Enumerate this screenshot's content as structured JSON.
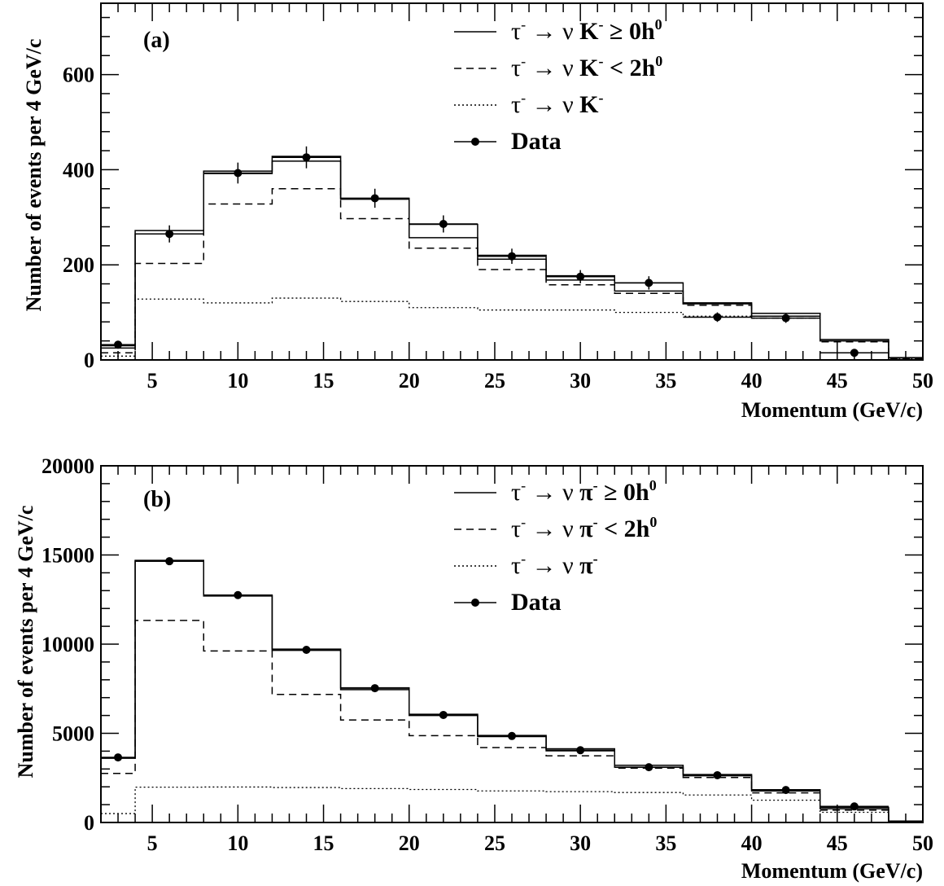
{
  "chart_data": [
    {
      "type": "line",
      "panel_label": "(a)",
      "xlabel": "Momentum (GeV/c)",
      "ylabel": "Number of events per 4 GeV/c",
      "xlim": [
        2,
        50
      ],
      "ylim": [
        0,
        750
      ],
      "x_ticks": [
        5,
        10,
        15,
        20,
        25,
        30,
        35,
        40,
        45,
        50
      ],
      "y_ticks": [
        0,
        200,
        400,
        600
      ],
      "y_tick_labels": [
        "0",
        "200",
        "400",
        "600"
      ],
      "bin_edges": [
        2,
        4,
        8,
        12,
        16,
        20,
        24,
        28,
        32,
        36,
        40,
        44,
        48,
        50
      ],
      "legend_placement": "top-right",
      "series": [
        {
          "kind": "mc_upper",
          "style": "solid",
          "values": [
            30,
            272,
            397,
            428,
            340,
            285,
            220,
            177,
            162,
            120,
            98,
            43,
            5
          ]
        },
        {
          "kind": "mc_lower",
          "style": "solid",
          "values": [
            25,
            265,
            392,
            418,
            338,
            257,
            212,
            168,
            145,
            118,
            92,
            40,
            4
          ]
        },
        {
          "kind": "mc",
          "style": "dashed",
          "values": [
            15,
            203,
            328,
            360,
            297,
            235,
            190,
            158,
            140,
            115,
            88,
            38,
            3
          ]
        },
        {
          "kind": "mc",
          "style": "dotted",
          "values": [
            8,
            128,
            120,
            130,
            123,
            110,
            105,
            105,
            100,
            92,
            88,
            40,
            3
          ]
        },
        {
          "kind": "data",
          "style": "points",
          "x": [
            3,
            6,
            10,
            14,
            18,
            22,
            26,
            30,
            34,
            38,
            42,
            46
          ],
          "y": [
            32,
            265,
            393,
            426,
            340,
            286,
            218,
            175,
            162,
            90,
            88,
            15
          ],
          "err": [
            5,
            18,
            22,
            23,
            20,
            18,
            16,
            14,
            14,
            10,
            10,
            4
          ],
          "xerr_ranges": [
            [
              2,
              4
            ],
            [
              4,
              8
            ],
            [
              8,
              12
            ],
            [
              12,
              16
            ],
            [
              16,
              20
            ],
            [
              20,
              24
            ],
            [
              24,
              28
            ],
            [
              28,
              32
            ],
            [
              32,
              36
            ],
            [
              36,
              40
            ],
            [
              40,
              44
            ],
            [
              44,
              48
            ]
          ]
        }
      ],
      "legend": [
        {
          "style": "solid",
          "pre": "τ",
          "sup1": "-",
          "mid": " → ν ",
          "bold": "K",
          "sup2": "-",
          "tail": " ≥ 0h",
          "sup3": "0"
        },
        {
          "style": "dashed",
          "pre": "τ",
          "sup1": "-",
          "mid": " → ν ",
          "bold": "K",
          "sup2": "-",
          "tail": " < 2h",
          "sup3": "0"
        },
        {
          "style": "dotted",
          "pre": "τ",
          "sup1": "-",
          "mid": " → ν ",
          "bold": "K",
          "sup2": "-",
          "tail": "",
          "sup3": ""
        },
        {
          "style": "points",
          "label": "Data"
        }
      ]
    },
    {
      "type": "line",
      "panel_label": "(b)",
      "xlabel": "Momentum (GeV/c)",
      "ylabel": "Number of events per 4 GeV/c",
      "xlim": [
        2,
        50
      ],
      "ylim": [
        0,
        20000
      ],
      "x_ticks": [
        5,
        10,
        15,
        20,
        25,
        30,
        35,
        40,
        45,
        50
      ],
      "y_ticks": [
        0,
        5000,
        10000,
        15000,
        20000
      ],
      "y_tick_labels": [
        "0",
        "5000",
        "10000",
        "15000",
        "20000"
      ],
      "bin_edges": [
        2,
        4,
        8,
        12,
        16,
        20,
        24,
        28,
        32,
        36,
        40,
        44,
        48,
        50
      ],
      "legend_placement": "top-right",
      "series": [
        {
          "kind": "mc_upper",
          "style": "solid",
          "values": [
            3650,
            14700,
            12750,
            9720,
            7550,
            6070,
            4880,
            4130,
            3210,
            2690,
            1840,
            850,
            80
          ]
        },
        {
          "kind": "mc_lower",
          "style": "solid",
          "values": [
            3600,
            14650,
            12700,
            9650,
            7450,
            6000,
            4820,
            4020,
            3100,
            2620,
            1770,
            770,
            60
          ]
        },
        {
          "kind": "mc",
          "style": "dashed",
          "values": [
            2750,
            11330,
            9620,
            7180,
            5750,
            4870,
            4200,
            3740,
            3050,
            2520,
            1660,
            690,
            50
          ]
        },
        {
          "kind": "mc",
          "style": "dotted",
          "values": [
            500,
            1980,
            1990,
            1960,
            1900,
            1850,
            1770,
            1730,
            1680,
            1540,
            1250,
            570,
            40
          ]
        },
        {
          "kind": "data",
          "style": "points",
          "x": [
            3,
            6,
            10,
            14,
            18,
            22,
            26,
            30,
            34,
            38,
            42,
            46
          ],
          "y": [
            3650,
            14650,
            12750,
            9680,
            7530,
            6030,
            4850,
            4050,
            3100,
            2650,
            1820,
            900
          ],
          "err": [
            60,
            120,
            110,
            100,
            90,
            80,
            70,
            65,
            60,
            52,
            45,
            30
          ],
          "xerr_ranges": [
            [
              2,
              4
            ],
            [
              4,
              8
            ],
            [
              8,
              12
            ],
            [
              12,
              16
            ],
            [
              16,
              20
            ],
            [
              20,
              24
            ],
            [
              24,
              28
            ],
            [
              28,
              32
            ],
            [
              32,
              36
            ],
            [
              36,
              40
            ],
            [
              40,
              44
            ],
            [
              44,
              48
            ]
          ]
        }
      ],
      "legend": [
        {
          "style": "solid",
          "pre": "τ",
          "sup1": "-",
          "mid": " → ν ",
          "bold": "π",
          "sup2": "-",
          "tail": " ≥ 0h",
          "sup3": "0"
        },
        {
          "style": "dashed",
          "pre": "τ",
          "sup1": "-",
          "mid": " → ν ",
          "bold": "π",
          "sup2": "-",
          "tail": " < 2h",
          "sup3": "0"
        },
        {
          "style": "dotted",
          "pre": "τ",
          "sup1": "-",
          "mid": " → ν ",
          "bold": "π",
          "sup2": "-",
          "tail": "",
          "sup3": ""
        },
        {
          "style": "points",
          "label": "Data"
        }
      ]
    }
  ]
}
